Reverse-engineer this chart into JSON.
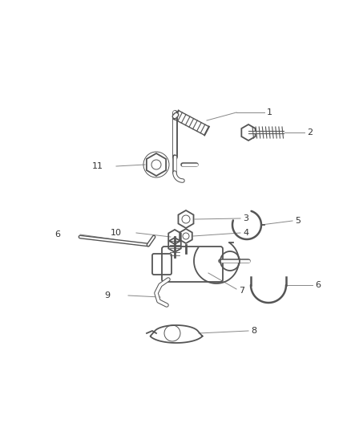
{
  "bg_color": "#ffffff",
  "stroke_color": "#555555",
  "label_color": "#333333",
  "leader_color": "#888888",
  "figsize": [
    4.38,
    5.33
  ],
  "dpi": 100
}
